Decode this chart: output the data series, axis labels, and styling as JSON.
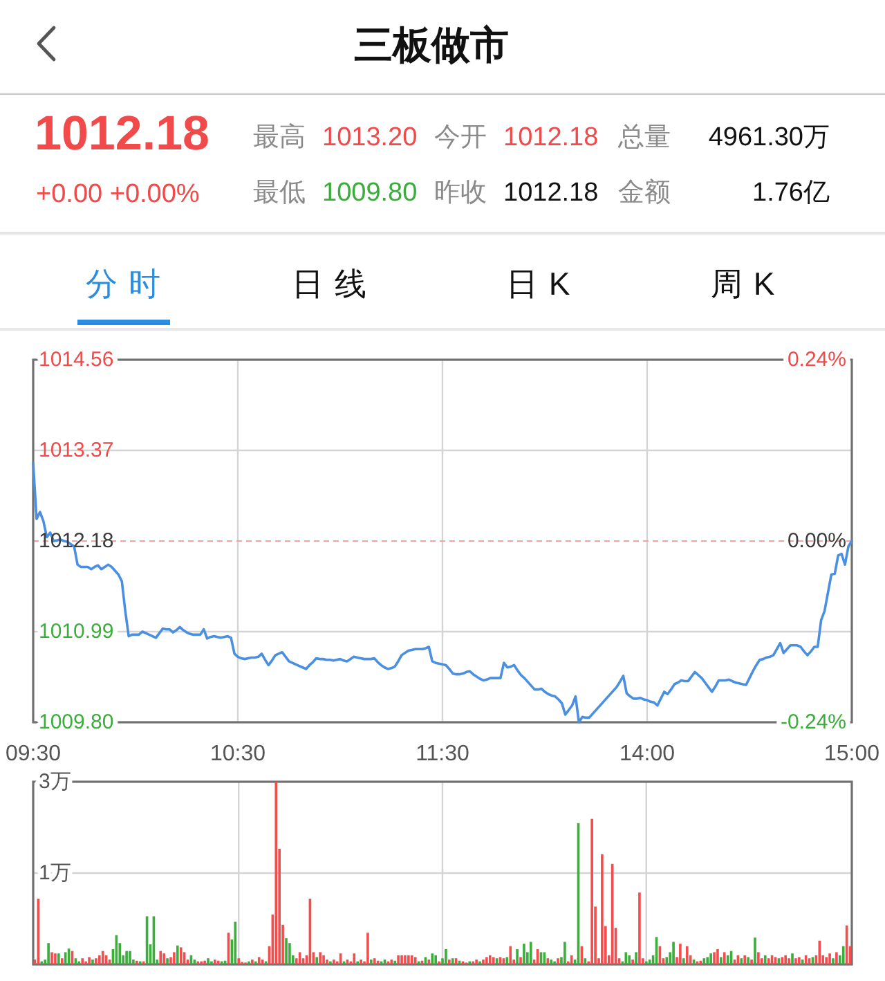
{
  "chart_data": [
    {
      "type": "other",
      "title": "三板做市",
      "annotations": [
        "1012.18",
        "+0.00 +0.00%",
        "最高",
        "1013.20",
        "今开",
        "1012.18",
        "总量",
        "4961.30万",
        "最低",
        "1009.80",
        "昨收",
        "1012.18",
        "金额",
        "1.76亿",
        "分时",
        "日线",
        "日K",
        "周K"
      ]
    },
    {
      "type": "line",
      "color": "#4a8fe0",
      "categories": [
        "09:30",
        null,
        null,
        null,
        null,
        null,
        null,
        null,
        null,
        null,
        null,
        null,
        null,
        null,
        null,
        null,
        null,
        null,
        null,
        null,
        null,
        null,
        null,
        null,
        null,
        null,
        null,
        null,
        null,
        null,
        null,
        null,
        null,
        null,
        null,
        null,
        null,
        null,
        null,
        null,
        null,
        null,
        null,
        null,
        null,
        null,
        null,
        null,
        null,
        null,
        null,
        null,
        null,
        null,
        null,
        null,
        null,
        null,
        null,
        null,
        "10:30",
        null,
        null,
        null,
        null,
        null,
        null,
        null,
        null,
        null,
        null,
        null,
        null,
        null,
        null,
        null,
        null,
        null,
        null,
        null,
        null,
        null,
        null,
        null,
        null,
        null,
        null,
        null,
        null,
        null,
        null,
        null,
        null,
        null,
        null,
        null,
        null,
        null,
        null,
        null,
        null,
        null,
        null,
        null,
        null,
        null,
        null,
        null,
        null,
        null,
        null,
        null,
        null,
        null,
        null,
        null,
        null,
        null,
        null,
        null,
        "11:30",
        null,
        null,
        null,
        null,
        null,
        null,
        null,
        null,
        null,
        null,
        null,
        null,
        null,
        null,
        null,
        null,
        null,
        null,
        null,
        null,
        null,
        null,
        null,
        null,
        null,
        null,
        null,
        null,
        null,
        null,
        null,
        null,
        null,
        null,
        null,
        null,
        null,
        null,
        null,
        null,
        null,
        null,
        null,
        null,
        null,
        null,
        null,
        null,
        null,
        null,
        null,
        null,
        null,
        null,
        null,
        null,
        null,
        null,
        null,
        "14:00",
        null,
        null,
        null,
        null,
        null,
        null,
        null,
        null,
        null,
        null,
        null,
        null,
        null,
        null,
        null,
        null,
        null,
        null,
        null,
        null,
        null,
        null,
        null,
        null,
        null,
        null,
        null,
        null,
        null,
        null,
        null,
        null,
        null,
        null,
        null,
        null,
        null,
        null,
        null,
        null,
        null,
        null,
        null,
        null,
        null,
        null,
        null,
        null,
        null,
        null,
        null,
        null,
        null,
        null,
        null,
        null,
        null,
        null,
        null,
        "15:00"
      ],
      "values": [
        1013.2,
        1012.47,
        1012.56,
        1012.44,
        1012.23,
        1012.29,
        1012.18,
        1012.19,
        1012.2,
        1012.18,
        1012.17,
        1012.14,
        1012.11,
        1011.87,
        1011.84,
        1011.84,
        1011.84,
        1011.81,
        1011.84,
        1011.86,
        1011.81,
        1011.84,
        1011.87,
        1011.84,
        1011.79,
        1011.74,
        1011.65,
        1011.26,
        1010.93,
        1010.95,
        1010.95,
        1010.95,
        1010.99,
        1010.97,
        1010.95,
        1010.93,
        1010.91,
        1010.97,
        1011.03,
        1011.02,
        1011.02,
        1010.98,
        1011.01,
        1011.05,
        1011.01,
        1010.98,
        1010.96,
        1010.95,
        1010.95,
        1010.95,
        1011.02,
        1010.9,
        1010.92,
        1010.93,
        1010.92,
        1010.91,
        1010.92,
        1010.93,
        1010.91,
        1010.7,
        1010.66,
        1010.64,
        1010.63,
        1010.64,
        1010.65,
        1010.65,
        1010.66,
        1010.7,
        1010.62,
        1010.55,
        1010.61,
        1010.68,
        1010.7,
        1010.72,
        1010.66,
        1010.6,
        1010.58,
        1010.56,
        1010.54,
        1010.52,
        1010.5,
        1010.55,
        1010.59,
        1010.64,
        1010.63,
        1010.63,
        1010.62,
        1010.62,
        1010.61,
        1010.62,
        1010.63,
        1010.61,
        1010.6,
        1010.63,
        1010.66,
        1010.65,
        1010.64,
        1010.63,
        1010.63,
        1010.63,
        1010.64,
        1010.59,
        1010.55,
        1010.52,
        1010.5,
        1010.51,
        1010.53,
        1010.6,
        1010.68,
        1010.71,
        1010.74,
        1010.75,
        1010.76,
        1010.76,
        1010.76,
        1010.77,
        1010.79,
        1010.6,
        1010.58,
        1010.57,
        1010.56,
        1010.55,
        1010.5,
        1010.44,
        1010.43,
        1010.43,
        1010.44,
        1010.46,
        1010.47,
        1010.43,
        1010.4,
        1010.37,
        1010.35,
        1010.36,
        1010.38,
        1010.38,
        1010.38,
        1010.38,
        1010.58,
        1010.52,
        1010.53,
        1010.55,
        1010.48,
        1010.42,
        1010.38,
        1010.33,
        1010.28,
        1010.23,
        1010.23,
        1010.24,
        1010.2,
        1010.17,
        1010.15,
        1010.14,
        1010.1,
        1010.05,
        1009.9,
        1009.96,
        1010.02,
        1010.14,
        1009.8,
        1009.87,
        1009.86,
        1009.86,
        1009.91,
        1009.96,
        1010.01,
        1010.06,
        1010.11,
        1010.16,
        1010.21,
        1010.26,
        1010.33,
        1010.41,
        1010.18,
        1010.14,
        1010.11,
        1010.11,
        1010.12,
        1010.1,
        1010.09,
        1010.07,
        1010.06,
        1010.02,
        1010.11,
        1010.2,
        1010.17,
        1010.23,
        1010.3,
        1010.32,
        1010.35,
        1010.34,
        1010.34,
        1010.4,
        1010.46,
        1010.42,
        1010.38,
        1010.32,
        1010.26,
        1010.2,
        1010.27,
        1010.35,
        1010.35,
        1010.35,
        1010.36,
        1010.34,
        1010.32,
        1010.31,
        1010.3,
        1010.29,
        1010.38,
        1010.47,
        1010.55,
        1010.62,
        1010.63,
        1010.65,
        1010.66,
        1010.68,
        1010.76,
        1010.84,
        1010.71,
        1010.76,
        1010.81,
        1010.81,
        1010.81,
        1010.79,
        1010.73,
        1010.68,
        1010.73,
        1010.79,
        1010.79,
        1011.14,
        1011.26,
        1011.5,
        1011.74,
        1011.75,
        1011.99,
        1012.01,
        1011.87,
        1012.11,
        1012.18
      ],
      "ylim": [
        1009.8,
        1014.56
      ],
      "yticks": [
        {
          "value": 1009.8,
          "label": "1009.80"
        },
        1010.99,
        1012.18,
        1013.37,
        1014.56
      ],
      "y2lim": [
        -0.24,
        0.24
      ],
      "y2ticks": [
        {
          "value": -0.24,
          "label": "-0.24%"
        },
        {
          "value": 0,
          "label": "0.00%"
        },
        {
          "value": 0.24,
          "label": "0.24%"
        }
      ],
      "ref_lines": [
        {
          "axis": "y",
          "value": 1012.18,
          "color": "#f2a3a3",
          "line_style": "dashed"
        }
      ],
      "grid": true
    },
    {
      "type": "bar",
      "categories": [
        null,
        null,
        null,
        null,
        null,
        null,
        null,
        null,
        null,
        null,
        null,
        null,
        null,
        null,
        null,
        null,
        null,
        null,
        null,
        null,
        null,
        null,
        null,
        null,
        null,
        null,
        null,
        null,
        null,
        null,
        null,
        null,
        null,
        null,
        null,
        null,
        null,
        null,
        null,
        null,
        null,
        null,
        null,
        null,
        null,
        null,
        null,
        null,
        null,
        null,
        null,
        null,
        null,
        null,
        null,
        null,
        null,
        null,
        null,
        null,
        null,
        null,
        null,
        null,
        null,
        null,
        null,
        null,
        null,
        null,
        null,
        null,
        null,
        null,
        null,
        null,
        null,
        null,
        null,
        null,
        null,
        null,
        null,
        null,
        null,
        null,
        null,
        null,
        null,
        null,
        null,
        null,
        null,
        null,
        null,
        null,
        null,
        null,
        null,
        null,
        null,
        null,
        null,
        null,
        null,
        null,
        null,
        null,
        null,
        null,
        null,
        null,
        null,
        null,
        null,
        null,
        null,
        null,
        null,
        null,
        null,
        null,
        null,
        null,
        null,
        null,
        null,
        null,
        null,
        null,
        null,
        null,
        null,
        null,
        null,
        null,
        null,
        null,
        null,
        null,
        null,
        null,
        null,
        null,
        null,
        null,
        null,
        null,
        null,
        null,
        null,
        null,
        null,
        null,
        null,
        null,
        null,
        null,
        null,
        null,
        null,
        null,
        null,
        null,
        null,
        null,
        null,
        null,
        null,
        null,
        null,
        null,
        null,
        null,
        null,
        null,
        null,
        null,
        null,
        null,
        null,
        null,
        null,
        null,
        null,
        null,
        null,
        null,
        null,
        null,
        null,
        null,
        null,
        null,
        null,
        null,
        null,
        null,
        null,
        null,
        null,
        null,
        null,
        null,
        null,
        null,
        null,
        null,
        null,
        null,
        null,
        null,
        null,
        null,
        null,
        null,
        null,
        null,
        null,
        null,
        null,
        null,
        null,
        null,
        null,
        null,
        null,
        null,
        null,
        null,
        null,
        null,
        null,
        null,
        null,
        null,
        null,
        null,
        null,
        null,
        null
      ],
      "values": [
        0.08,
        1.08,
        0.05,
        0.08,
        0.35,
        0.2,
        0.18,
        0.18,
        0.1,
        0.2,
        0.26,
        0.22,
        0.1,
        0.05,
        0.1,
        0.05,
        0.12,
        0.08,
        0.1,
        0.15,
        0.22,
        0.15,
        0.08,
        0.25,
        0.48,
        0.35,
        0.15,
        0.22,
        0.22,
        0.08,
        0.06,
        0.05,
        0.05,
        0.79,
        0.33,
        0.79,
        0.08,
        0.22,
        0.18,
        0.1,
        0.12,
        0.2,
        0.31,
        0.28,
        0.2,
        0.08,
        0.15,
        0.08,
        0.05,
        0.05,
        0.06,
        0.1,
        0.05,
        0.08,
        0.06,
        0.05,
        0.06,
        0.52,
        0.41,
        0.7,
        0.1,
        0.04,
        0.03,
        0.05,
        0.08,
        0.05,
        0.12,
        0.08,
        0.05,
        0.3,
        0.82,
        3,
        1.9,
        0.65,
        0.43,
        0.35,
        0.15,
        0.1,
        0.2,
        0.1,
        0.15,
        1.08,
        0.2,
        0.12,
        0.2,
        0.15,
        0.08,
        0.05,
        0.08,
        0.05,
        0.18,
        0.05,
        0.08,
        0.05,
        0.18,
        0.05,
        0.08,
        0.05,
        0.52,
        0.08,
        0.1,
        0.06,
        0.05,
        0.08,
        0.05,
        0.08,
        0.06,
        0.15,
        0.15,
        0.15,
        0.15,
        0.15,
        0.12,
        0.05,
        0.06,
        0.12,
        0.08,
        0.18,
        0.15,
        0.05,
        0.1,
        0.25,
        0.08,
        0.1,
        0.1,
        0.06,
        0.05,
        0.03,
        0.05,
        0.05,
        0.08,
        0.05,
        0.08,
        0.12,
        0.15,
        0.12,
        0.1,
        0.12,
        0.1,
        0.12,
        0.3,
        0.08,
        0.25,
        0.12,
        0.34,
        0.2,
        0.37,
        0.08,
        0.25,
        0.2,
        0.2,
        0.1,
        0.08,
        0.05,
        0.1,
        0.12,
        0.37,
        0.05,
        0.15,
        0.08,
        2.32,
        0.3,
        0.1,
        0.05,
        2.39,
        0.95,
        0.1,
        1.81,
        0.63,
        0.15,
        1.65,
        0.6,
        0.1,
        0.05,
        0.2,
        0.15,
        0.08,
        0.2,
        1.18,
        0.1,
        0.05,
        0.08,
        0.15,
        0.45,
        0.3,
        0.1,
        0.12,
        0.2,
        0.37,
        0.12,
        0.34,
        0.1,
        0.3,
        0.15,
        0.08,
        0.05,
        0.06,
        0.1,
        0.12,
        0.18,
        0.2,
        0.25,
        0.12,
        0.2,
        0.15,
        0.22,
        0.08,
        0.15,
        0.1,
        0.15,
        0.12,
        0.08,
        0.44,
        0.2,
        0.1,
        0.15,
        0.1,
        0.15,
        0.12,
        0.1,
        0.12,
        0.15,
        0.1,
        0.18,
        0.1,
        0.12,
        0.08,
        0.15,
        0.1,
        0.12,
        0.15,
        0.39,
        0.15,
        0.12,
        0.18,
        0.1,
        0.2,
        0.15,
        0.3,
        0.64,
        0.3
      ],
      "colors": [
        "#f24e4e",
        "#f24e4e",
        "#3cae3c",
        "#3cae3c",
        "#3cae3c",
        "#f24e4e",
        "#f24e4e",
        "#3cae3c",
        "#f24e4e",
        "#3cae3c",
        "#3cae3c",
        "#f24e4e",
        "#3cae3c",
        "#3cae3c",
        "#f24e4e",
        "#f24e4e",
        "#f24e4e",
        "#3cae3c",
        "#f24e4e",
        "#f24e4e",
        "#f24e4e",
        "#f24e4e",
        "#f24e4e",
        "#3cae3c",
        "#3cae3c",
        "#3cae3c",
        "#3cae3c",
        "#3cae3c",
        "#3cae3c",
        "#3cae3c",
        "#f24e4e",
        "#3cae3c",
        "#f24e4e",
        "#3cae3c",
        "#3cae3c",
        "#3cae3c",
        "#3cae3c",
        "#f24e4e",
        "#f24e4e",
        "#3cae3c",
        "#f24e4e",
        "#f24e4e",
        "#3cae3c",
        "#f24e4e",
        "#f24e4e",
        "#f24e4e",
        "#3cae3c",
        "#3cae3c",
        "#f24e4e",
        "#f24e4e",
        "#f24e4e",
        "#3cae3c",
        "#3cae3c",
        "#f24e4e",
        "#f24e4e",
        "#3cae3c",
        "#3cae3c",
        "#f24e4e",
        "#3cae3c",
        "#3cae3c",
        "#f24e4e",
        "#f24e4e",
        "#f24e4e",
        "#3cae3c",
        "#f24e4e",
        "#3cae3c",
        "#f24e4e",
        "#f24e4e",
        "#3cae3c",
        "#f24e4e",
        "#f24e4e",
        "#f24e4e",
        "#f24e4e",
        "#f24e4e",
        "#3cae3c",
        "#3cae3c",
        "#3cae3c",
        "#f24e4e",
        "#f24e4e",
        "#f24e4e",
        "#f24e4e",
        "#f24e4e",
        "#f24e4e",
        "#3cae3c",
        "#f24e4e",
        "#f24e4e",
        "#f24e4e",
        "#3cae3c",
        "#f24e4e",
        "#f24e4e",
        "#f24e4e",
        "#3cae3c",
        "#f24e4e",
        "#f24e4e",
        "#f24e4e",
        "#3cae3c",
        "#f24e4e",
        "#f24e4e",
        "#f24e4e",
        "#3cae3c",
        "#f24e4e",
        "#f24e4e",
        "#3cae3c",
        "#3cae3c",
        "#f24e4e",
        "#f24e4e",
        "#3cae3c",
        "#f24e4e",
        "#f24e4e",
        "#f24e4e",
        "#f24e4e",
        "#f24e4e",
        "#f24e4e",
        "#3cae3c",
        "#f24e4e",
        "#3cae3c",
        "#f24e4e",
        "#3cae3c",
        "#3cae3c",
        "#f24e4e",
        "#3cae3c",
        "#3cae3c",
        "#f24e4e",
        "#3cae3c",
        "#f24e4e",
        "#3cae3c",
        "#f24e4e",
        "#f24e4e",
        "#3cae3c",
        "#f24e4e",
        "#f24e4e",
        "#3cae3c",
        "#f24e4e",
        "#f24e4e",
        "#f24e4e",
        "#f24e4e",
        "#3cae3c",
        "#f24e4e",
        "#f24e4e",
        "#3cae3c",
        "#f24e4e",
        "#f24e4e",
        "#3cae3c",
        "#f24e4e",
        "#3cae3c",
        "#3cae3c",
        "#3cae3c",
        "#f24e4e",
        "#f24e4e",
        "#3cae3c",
        "#3cae3c",
        "#f24e4e",
        "#3cae3c",
        "#3cae3c",
        "#f24e4e",
        "#3cae3c",
        "#3cae3c",
        "#f24e4e",
        "#f24e4e",
        "#3cae3c",
        "#3cae3c",
        "#f24e4e",
        "#3cae3c",
        "#f24e4e",
        "#f24e4e",
        "#f24e4e",
        "#f24e4e",
        "#f24e4e",
        "#f24e4e",
        "#f24e4e",
        "#f24e4e",
        "#f24e4e",
        "#f24e4e",
        "#3cae3c",
        "#3cae3c",
        "#3cae3c",
        "#f24e4e",
        "#3cae3c",
        "#f24e4e",
        "#f24e4e",
        "#3cae3c",
        "#3cae3c",
        "#3cae3c",
        "#3cae3c",
        "#f24e4e",
        "#f24e4e",
        "#3cae3c",
        "#3cae3c",
        "#3cae3c",
        "#f24e4e",
        "#f24e4e",
        "#3cae3c",
        "#f24e4e",
        "#f24e4e",
        "#3cae3c",
        "#f24e4e",
        "#f24e4e",
        "#3cae3c",
        "#3cae3c",
        "#3cae3c",
        "#f24e4e",
        "#f24e4e",
        "#3cae3c",
        "#f24e4e",
        "#3cae3c",
        "#3cae3c",
        "#f24e4e",
        "#f24e4e",
        "#3cae3c",
        "#f24e4e",
        "#3cae3c",
        "#f24e4e",
        "#3cae3c",
        "#f24e4e",
        "#f24e4e",
        "#3cae3c",
        "#f24e4e",
        "#f24e4e",
        "#f24e4e",
        "#3cae3c",
        "#f24e4e",
        "#f24e4e",
        "#f24e4e",
        "#3cae3c",
        "#f24e4e",
        "#f24e4e",
        "#3cae3c",
        "#f24e4e",
        "#f24e4e",
        "#3cae3c",
        "#f24e4e",
        "#f24e4e",
        "#f24e4e",
        "#f24e4e",
        "#f24e4e",
        "#3cae3c",
        "#f24e4e",
        "#3cae3c",
        "#3cae3c",
        "#f24e4e",
        "#f24e4e"
      ],
      "ylim": [
        0,
        3
      ],
      "yticks": [
        {
          "value": 1.5,
          "label": "1万"
        },
        {
          "value": 3,
          "label": "3万"
        }
      ],
      "grid": true,
      "tick_labels": "y"
    }
  ]
}
